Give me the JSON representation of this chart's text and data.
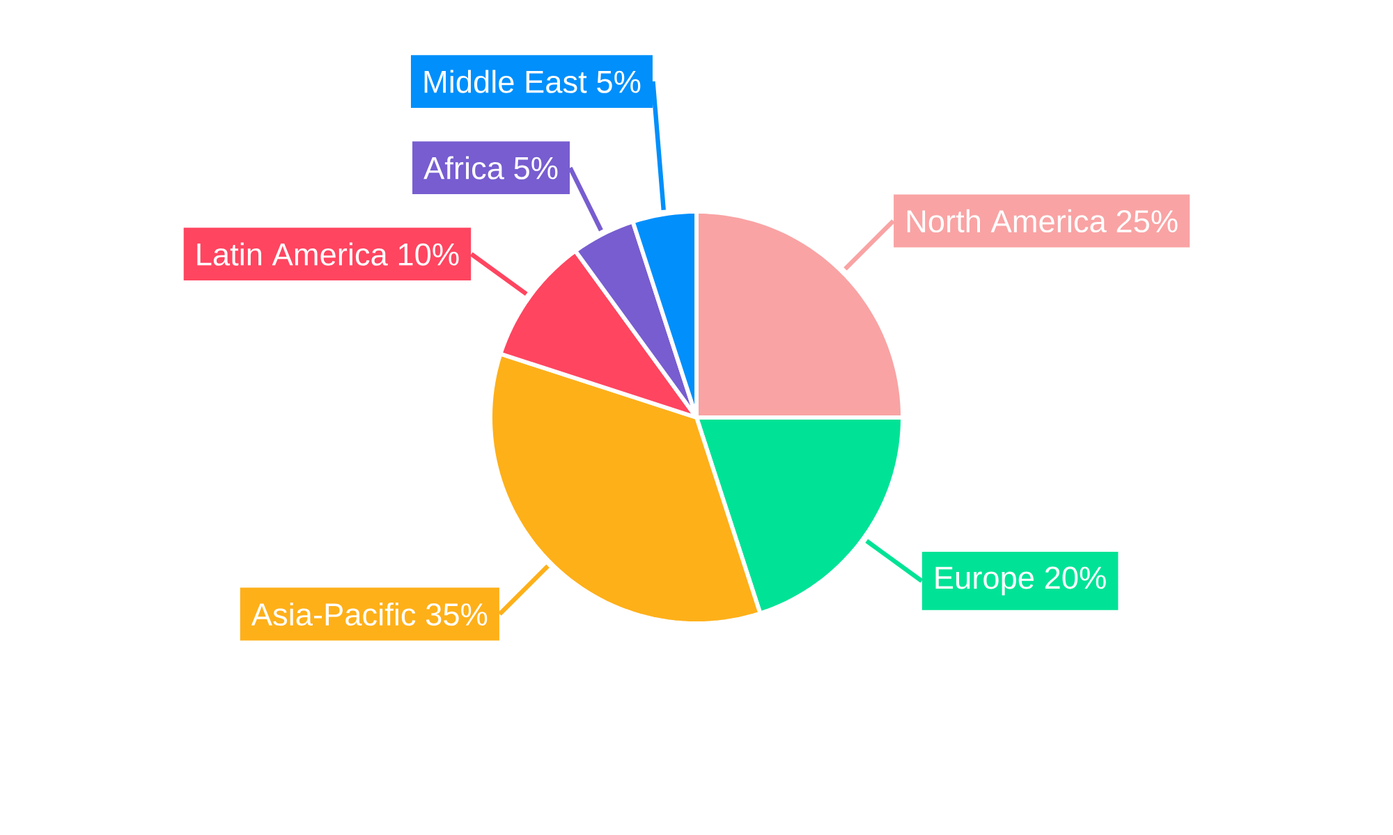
{
  "chart_data": {
    "type": "pie",
    "categories": [
      "North America",
      "Europe",
      "Asia-Pacific",
      "Latin America",
      "Africa",
      "Middle East"
    ],
    "values": [
      25,
      20,
      35,
      10,
      5,
      5
    ],
    "value_labels": [
      "25%",
      "20%",
      "35%",
      "10%",
      "5%",
      "5%"
    ],
    "colors": [
      "#f9a3a4",
      "#00e396",
      "#feb019",
      "#ff4560",
      "#775dd0",
      "#008ffb"
    ]
  }
}
